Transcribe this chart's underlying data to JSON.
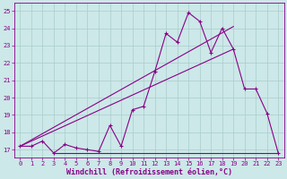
{
  "xlabel": "Windchill (Refroidissement éolien,°C)",
  "bg_color": "#cce8e8",
  "grid_color": "#aacccc",
  "line_color": "#880088",
  "x_min": -0.5,
  "x_max": 23.5,
  "y_min": 16.55,
  "y_max": 25.45,
  "line1_x": [
    0,
    1,
    2,
    3,
    4,
    5,
    6,
    7,
    8,
    9,
    10,
    11,
    12,
    13,
    14,
    15,
    16,
    17,
    18,
    19,
    20,
    21,
    22,
    23
  ],
  "line1_y": [
    17.2,
    17.2,
    17.5,
    16.8,
    17.3,
    17.1,
    17.0,
    16.9,
    18.4,
    17.2,
    19.3,
    19.5,
    21.5,
    23.7,
    23.2,
    24.9,
    24.4,
    22.6,
    24.0,
    22.8,
    20.5,
    20.5,
    19.1,
    16.8
  ],
  "line2_x": [
    0,
    19
  ],
  "line2_y": [
    17.2,
    22.8
  ],
  "line3_x": [
    0,
    19
  ],
  "line3_y": [
    17.2,
    24.1
  ],
  "flat_line_x": [
    3,
    23
  ],
  "flat_line_y": [
    16.8,
    16.8
  ],
  "x_ticks": [
    0,
    1,
    2,
    3,
    4,
    5,
    6,
    7,
    8,
    9,
    10,
    11,
    12,
    13,
    14,
    15,
    16,
    17,
    18,
    19,
    20,
    21,
    22,
    23
  ],
  "y_ticks": [
    17,
    18,
    19,
    20,
    21,
    22,
    23,
    24,
    25
  ],
  "tick_fontsize": 5.0,
  "label_fontsize": 6.0
}
